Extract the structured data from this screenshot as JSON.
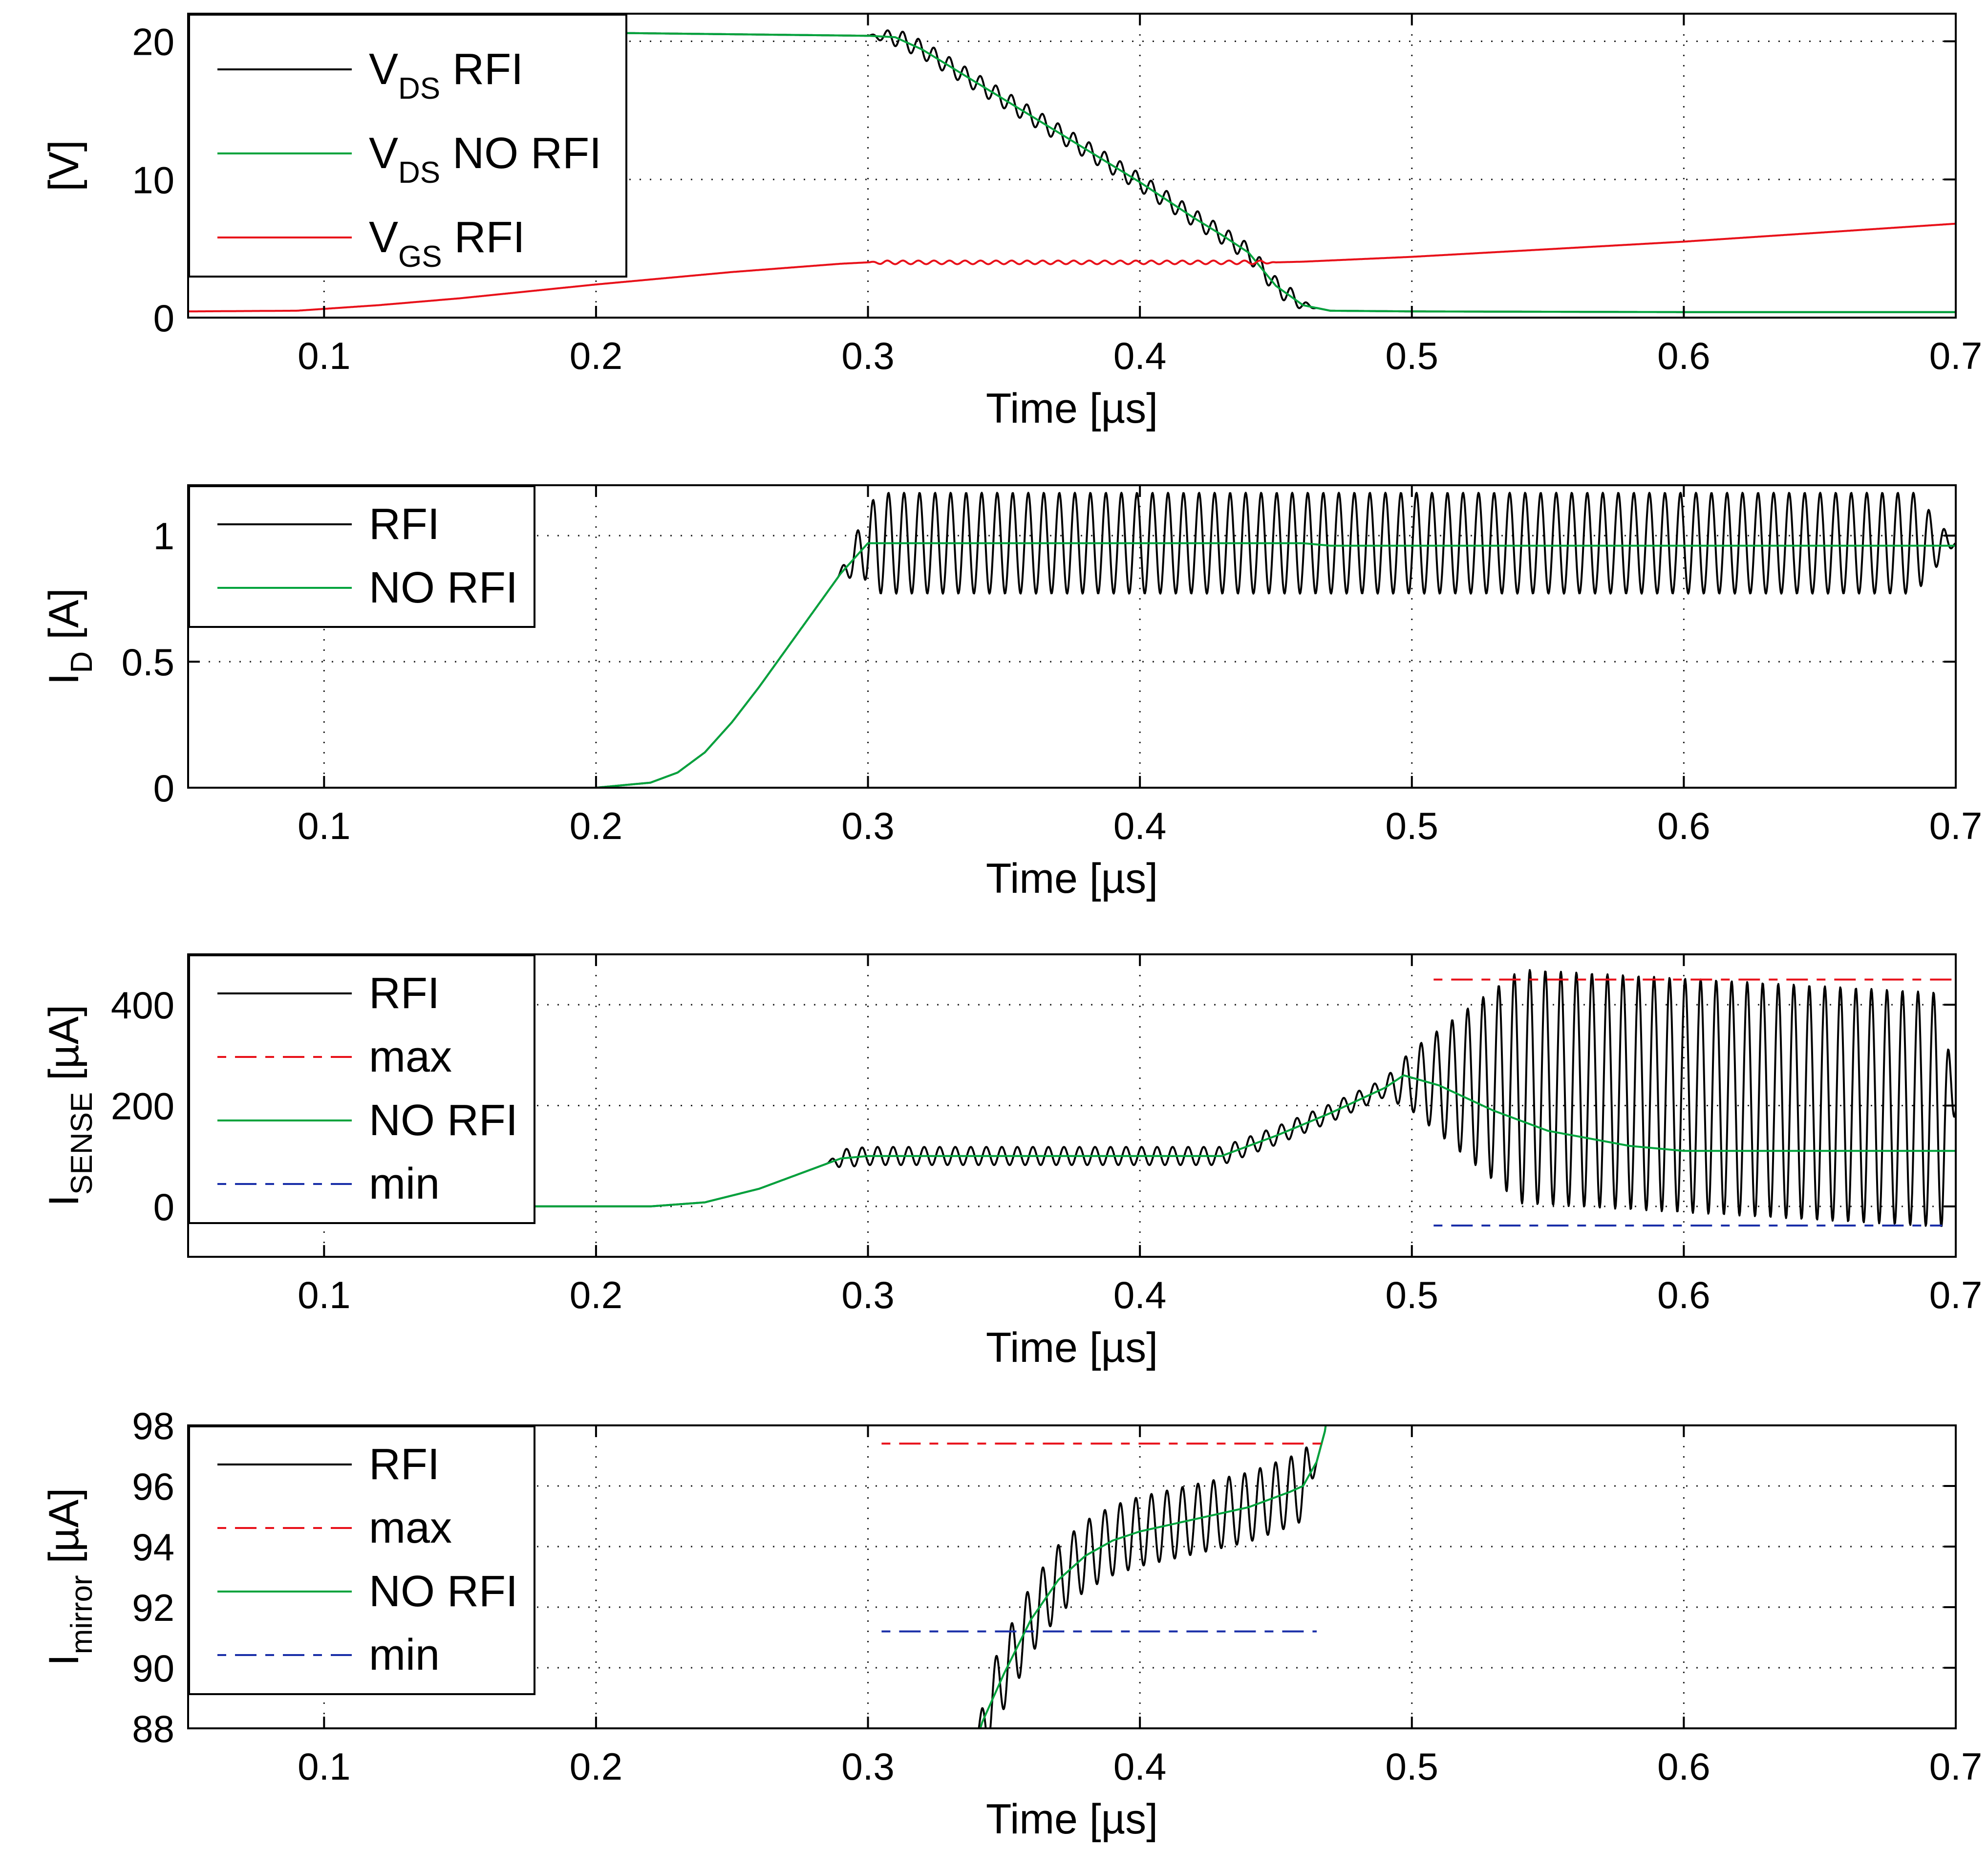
{
  "figure": {
    "description": "Four stacked time-domain plots comparing RFI and NO RFI operation",
    "colors": {
      "rfi": "#000000",
      "no_rfi": "#00a33c",
      "vgs": "#e8111a",
      "max": "#e8111a",
      "min": "#1a2fa8",
      "grid": "#000000"
    }
  },
  "chart_data": [
    {
      "type": "line",
      "id": "vds",
      "xlabel": "Time [µs]",
      "ylabel": {
        "text": "[V]"
      },
      "xlim": [
        0.05,
        0.7
      ],
      "ylim": [
        0,
        22
      ],
      "xticks": [
        0.1,
        0.2,
        0.3,
        0.4,
        0.5,
        0.6,
        0.7
      ],
      "xtick_labels": [
        "0.1",
        "0.2",
        "0.3",
        "0.4",
        "0.5",
        "0.6",
        "0.7"
      ],
      "yticks": [
        0,
        10,
        20
      ],
      "ytick_labels": [
        "0",
        "10",
        "20"
      ],
      "legend": [
        {
          "main": "V",
          "sub": "DS",
          "rest": " RFI",
          "color": "#000000",
          "dash": ""
        },
        {
          "main": "V",
          "sub": "DS",
          "rest": " NO RFI",
          "color": "#00a33c",
          "dash": ""
        },
        {
          "main": "V",
          "sub": "GS",
          "rest": " RFI",
          "color": "#e8111a",
          "dash": ""
        }
      ],
      "series": [
        {
          "name": "VDS RFI",
          "color": "#000000",
          "dash": "",
          "x": [
            0.05,
            0.21,
            0.3,
            0.31,
            0.32,
            0.33,
            0.34,
            0.35,
            0.36,
            0.37,
            0.38,
            0.39,
            0.4,
            0.41,
            0.42,
            0.43,
            0.44,
            0.45,
            0.46,
            0.47,
            0.5,
            0.6,
            0.7
          ],
          "y": [
            20.6,
            20.6,
            20.4,
            20.3,
            19.4,
            18.2,
            17.0,
            15.8,
            14.6,
            13.4,
            12.2,
            11.0,
            9.8,
            8.5,
            7.2,
            6.0,
            4.7,
            2.3,
            0.9,
            0.5,
            0.45,
            0.4,
            0.4
          ],
          "osc": {
            "start": 0.3,
            "end": 0.465,
            "period": 0.00571,
            "amp": 0.65,
            "ramp": 0.01
          }
        },
        {
          "name": "VDS NO RFI",
          "color": "#00a33c",
          "dash": "",
          "x": [
            0.05,
            0.21,
            0.3,
            0.31,
            0.32,
            0.33,
            0.34,
            0.35,
            0.36,
            0.37,
            0.38,
            0.39,
            0.4,
            0.41,
            0.42,
            0.43,
            0.44,
            0.45,
            0.46,
            0.47,
            0.5,
            0.6,
            0.7
          ],
          "y": [
            20.6,
            20.6,
            20.4,
            20.3,
            19.4,
            18.2,
            17.0,
            15.8,
            14.6,
            13.4,
            12.2,
            11.0,
            9.8,
            8.5,
            7.2,
            6.0,
            4.7,
            2.3,
            0.9,
            0.5,
            0.45,
            0.4,
            0.4
          ]
        },
        {
          "name": "VGS RFI",
          "color": "#e8111a",
          "dash": "",
          "x": [
            0.05,
            0.09,
            0.12,
            0.15,
            0.2,
            0.25,
            0.29,
            0.3,
            0.45,
            0.46,
            0.5,
            0.6,
            0.7
          ],
          "y": [
            0.45,
            0.5,
            0.9,
            1.4,
            2.4,
            3.3,
            3.9,
            4.0,
            4.0,
            4.05,
            4.4,
            5.5,
            6.8
          ],
          "osc": {
            "start": 0.3,
            "end": 0.45,
            "period": 0.00571,
            "amp": 0.13,
            "ramp": 0.005
          }
        }
      ]
    },
    {
      "type": "line",
      "id": "id",
      "xlabel": "Time [µs]",
      "ylabel": {
        "main": "I",
        "sub": "D",
        "rest": " [A]"
      },
      "xlim": [
        0.05,
        0.7
      ],
      "ylim": [
        0,
        1.2
      ],
      "xticks": [
        0.1,
        0.2,
        0.3,
        0.4,
        0.5,
        0.6,
        0.7
      ],
      "xtick_labels": [
        "0.1",
        "0.2",
        "0.3",
        "0.4",
        "0.5",
        "0.6",
        "0.7"
      ],
      "yticks": [
        0,
        0.5,
        1
      ],
      "ytick_labels": [
        "0",
        "0.5",
        "1"
      ],
      "legend": [
        {
          "text": "RFI",
          "color": "#000000",
          "dash": ""
        },
        {
          "text": "NO RFI",
          "color": "#00a33c",
          "dash": ""
        }
      ],
      "series": [
        {
          "name": "RFI",
          "color": "#000000",
          "dash": "",
          "x": [
            0.05,
            0.2,
            0.22,
            0.23,
            0.24,
            0.25,
            0.26,
            0.27,
            0.28,
            0.29,
            0.3,
            0.7
          ],
          "y": [
            0,
            0,
            0.02,
            0.06,
            0.14,
            0.26,
            0.4,
            0.55,
            0.7,
            0.85,
            0.97,
            0.97
          ],
          "osc": {
            "start": 0.289,
            "end": 0.7,
            "period": 0.00571,
            "amp": 0.2,
            "ramp": 0.015
          }
        },
        {
          "name": "NO RFI",
          "color": "#00a33c",
          "dash": "",
          "x": [
            0.05,
            0.2,
            0.22,
            0.23,
            0.24,
            0.25,
            0.26,
            0.27,
            0.28,
            0.29,
            0.3,
            0.46,
            0.47,
            0.7
          ],
          "y": [
            0,
            0,
            0.02,
            0.06,
            0.14,
            0.26,
            0.4,
            0.55,
            0.7,
            0.85,
            0.97,
            0.97,
            0.96,
            0.96
          ]
        }
      ]
    },
    {
      "type": "line",
      "id": "isense",
      "xlabel": "Time [µs]",
      "ylabel": {
        "main": "I",
        "sub": "SENSE",
        "rest": " [µA]"
      },
      "xlim": [
        0.05,
        0.7
      ],
      "ylim": [
        -100,
        500
      ],
      "xticks": [
        0.1,
        0.2,
        0.3,
        0.4,
        0.5,
        0.6,
        0.7
      ],
      "xtick_labels": [
        "0.1",
        "0.2",
        "0.3",
        "0.4",
        "0.5",
        "0.6",
        "0.7"
      ],
      "yticks": [
        0,
        200,
        400
      ],
      "ytick_labels": [
        "0",
        "200",
        "400"
      ],
      "legend": [
        {
          "text": "RFI",
          "color": "#000000",
          "dash": ""
        },
        {
          "text": "max",
          "color": "#e8111a",
          "dash": "18 18 44 18"
        },
        {
          "text": "NO RFI",
          "color": "#00a33c",
          "dash": ""
        },
        {
          "text": "min",
          "color": "#1a2fa8",
          "dash": "18 18 44 18"
        }
      ],
      "series": [
        {
          "name": "RFI",
          "color": "#000000",
          "dash": "",
          "x": [
            0.05,
            0.22,
            0.24,
            0.26,
            0.28,
            0.29,
            0.3,
            0.43,
            0.45,
            0.47,
            0.49,
            0.5,
            0.7
          ],
          "y": [
            0,
            0,
            8,
            35,
            75,
            95,
            100,
            100,
            140,
            185,
            235,
            250,
            190
          ],
          "osc": {
            "start": 0.285,
            "end": 0.7,
            "period": 0.00571,
            "amp": 18,
            "ramp": 0.005,
            "grow": {
              "start": 0.49,
              "end": 0.54,
              "amp": 232
            }
          }
        },
        {
          "name": "NO RFI",
          "color": "#00a33c",
          "dash": "",
          "x": [
            0.05,
            0.22,
            0.24,
            0.26,
            0.28,
            0.29,
            0.3,
            0.43,
            0.45,
            0.47,
            0.49,
            0.497,
            0.51,
            0.53,
            0.55,
            0.58,
            0.6,
            0.7
          ],
          "y": [
            0,
            0,
            8,
            35,
            75,
            95,
            100,
            100,
            140,
            185,
            235,
            260,
            240,
            190,
            150,
            120,
            110,
            110
          ]
        },
        {
          "name": "max",
          "color": "#e8111a",
          "dash": "18 18 44 18",
          "x": [
            0.508,
            0.7
          ],
          "y": [
            450,
            450
          ]
        },
        {
          "name": "min",
          "color": "#1a2fa8",
          "dash": "18 18 44 18",
          "x": [
            0.508,
            0.695
          ],
          "y": [
            -38,
            -38
          ]
        }
      ]
    },
    {
      "type": "line",
      "id": "imirror",
      "xlabel": "Time [µs]",
      "ylabel": {
        "main": "I",
        "sub": "mirror",
        "rest": " [µA]"
      },
      "xlim": [
        0.05,
        0.7
      ],
      "ylim": [
        88,
        98
      ],
      "xticks": [
        0.1,
        0.2,
        0.3,
        0.4,
        0.5,
        0.6,
        0.7
      ],
      "xtick_labels": [
        "0.1",
        "0.2",
        "0.3",
        "0.4",
        "0.5",
        "0.6",
        "0.7"
      ],
      "yticks": [
        88,
        90,
        92,
        94,
        96,
        98
      ],
      "ytick_labels": [
        "88",
        "90",
        "92",
        "94",
        "96",
        "98"
      ],
      "legend": [
        {
          "text": "RFI",
          "color": "#000000",
          "dash": ""
        },
        {
          "text": "max",
          "color": "#e8111a",
          "dash": "18 18 44 18"
        },
        {
          "text": "NO RFI",
          "color": "#00a33c",
          "dash": ""
        },
        {
          "text": "min",
          "color": "#1a2fa8",
          "dash": "18 18 44 18"
        }
      ],
      "series": [
        {
          "name": "RFI",
          "color": "#000000",
          "dash": "",
          "x": [
            0.338,
            0.342,
            0.35,
            0.36,
            0.37,
            0.38,
            0.39,
            0.4,
            0.42,
            0.44,
            0.455,
            0.46,
            0.465,
            0.468,
            0.47
          ],
          "y": [
            87.0,
            88.2,
            89.8,
            91.6,
            92.9,
            93.7,
            94.2,
            94.5,
            94.9,
            95.3,
            95.8,
            96.0,
            96.8,
            97.8,
            99.0
          ],
          "osc": {
            "start": 0.34,
            "end": 0.465,
            "period": 0.00571,
            "amp": 1.15,
            "ramp": 0.004
          }
        },
        {
          "name": "NO RFI",
          "color": "#00a33c",
          "dash": "",
          "x": [
            0.338,
            0.342,
            0.35,
            0.36,
            0.37,
            0.38,
            0.39,
            0.4,
            0.42,
            0.44,
            0.455,
            0.46,
            0.465,
            0.468,
            0.47
          ],
          "y": [
            87.0,
            88.2,
            89.8,
            91.6,
            92.9,
            93.7,
            94.2,
            94.5,
            94.9,
            95.3,
            95.8,
            96.0,
            96.8,
            97.8,
            99.0
          ]
        },
        {
          "name": "max",
          "color": "#e8111a",
          "dash": "18 18 44 18",
          "x": [
            0.305,
            0.468
          ],
          "y": [
            97.4,
            97.4
          ]
        },
        {
          "name": "min",
          "color": "#1a2fa8",
          "dash": "18 18 44 18",
          "x": [
            0.305,
            0.465
          ],
          "y": [
            91.2,
            91.2
          ]
        }
      ]
    }
  ]
}
